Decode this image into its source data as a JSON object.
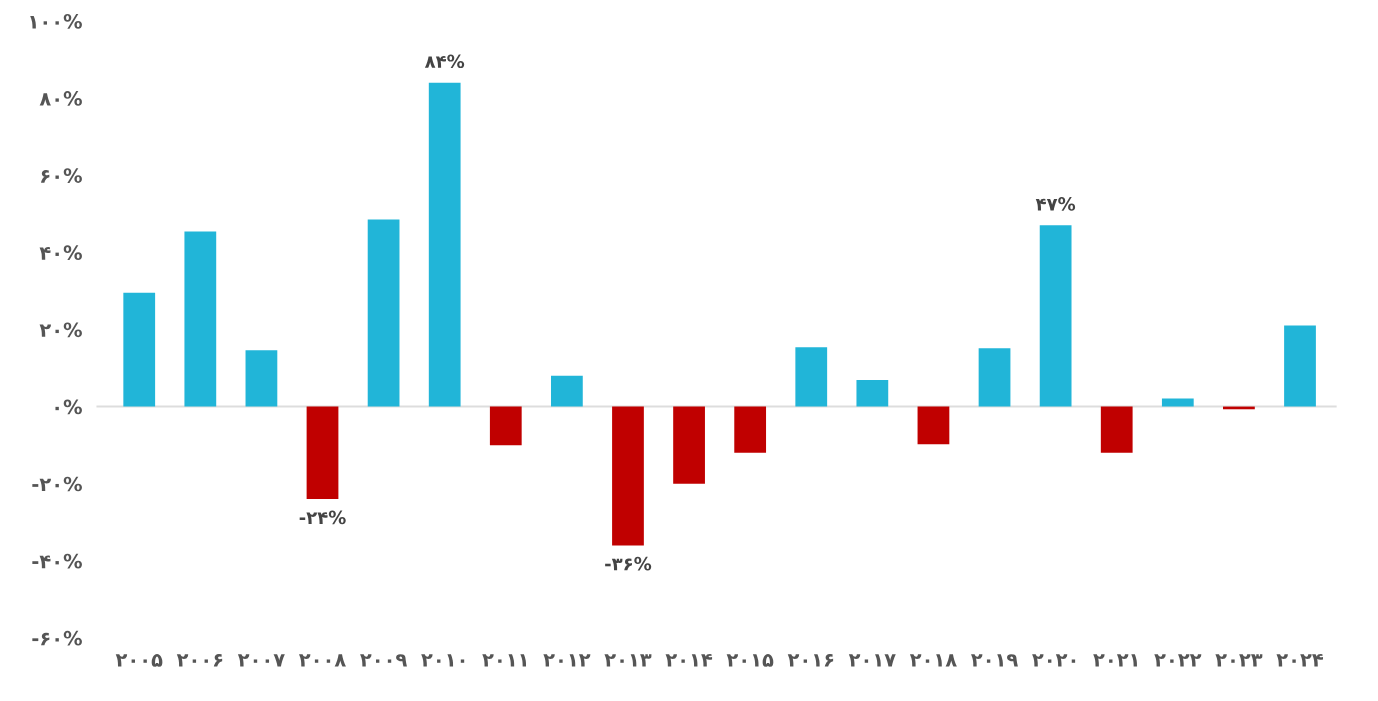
{
  "chart_data": {
    "type": "bar",
    "categories": [
      "۲۰۰۵",
      "۲۰۰۶",
      "۲۰۰۷",
      "۲۰۰۸",
      "۲۰۰۹",
      "۲۰۱۰",
      "۲۰۱۱",
      "۲۰۱۲",
      "۲۰۱۳",
      "۲۰۱۴",
      "۲۰۱۵",
      "۲۰۱۶",
      "۲۰۱۷",
      "۲۰۱۸",
      "۲۰۱۹",
      "۲۰۲۰",
      "۲۰۲۱",
      "۲۰۲۲",
      "۲۰۲۳",
      "۲۰۲۴"
    ],
    "values": [
      29.5,
      45.4,
      14.6,
      -24,
      48.5,
      84,
      -10,
      8,
      -36,
      -20,
      -12,
      15.4,
      6.9,
      -9.8,
      15.1,
      47,
      -12,
      2.1,
      -0.7,
      21
    ],
    "colors": [
      "#21b5d8",
      "#21b5d8",
      "#21b5d8",
      "#c00000",
      "#21b5d8",
      "#21b5d8",
      "#c00000",
      "#21b5d8",
      "#c00000",
      "#c00000",
      "#c00000",
      "#21b5d8",
      "#21b5d8",
      "#c00000",
      "#21b5d8",
      "#21b5d8",
      "#c00000",
      "#21b5d8",
      "#c00000",
      "#21b5d8"
    ],
    "value_labels": [
      null,
      null,
      null,
      "-۲۴%",
      null,
      "۸۴%",
      null,
      null,
      "-۳۶%",
      null,
      null,
      null,
      null,
      null,
      null,
      "۴۷%",
      null,
      null,
      null,
      null
    ],
    "ylim": [
      -60,
      100
    ],
    "yticks": [
      {
        "value": -60,
        "label": "-۶۰%"
      },
      {
        "value": -40,
        "label": "-۴۰%"
      },
      {
        "value": -20,
        "label": "-۲۰%"
      },
      {
        "value": 0,
        "label": "۰%"
      },
      {
        "value": 20,
        "label": "۲۰%"
      },
      {
        "value": 40,
        "label": "۴۰%"
      },
      {
        "value": 60,
        "label": "۶۰%"
      },
      {
        "value": 80,
        "label": "۸۰%"
      },
      {
        "value": 100,
        "label": "۱۰۰%"
      }
    ],
    "ref_lines": [
      {
        "axis": "y",
        "value": 0,
        "color": "#dddddd"
      }
    ],
    "grid": false,
    "legend": false
  }
}
